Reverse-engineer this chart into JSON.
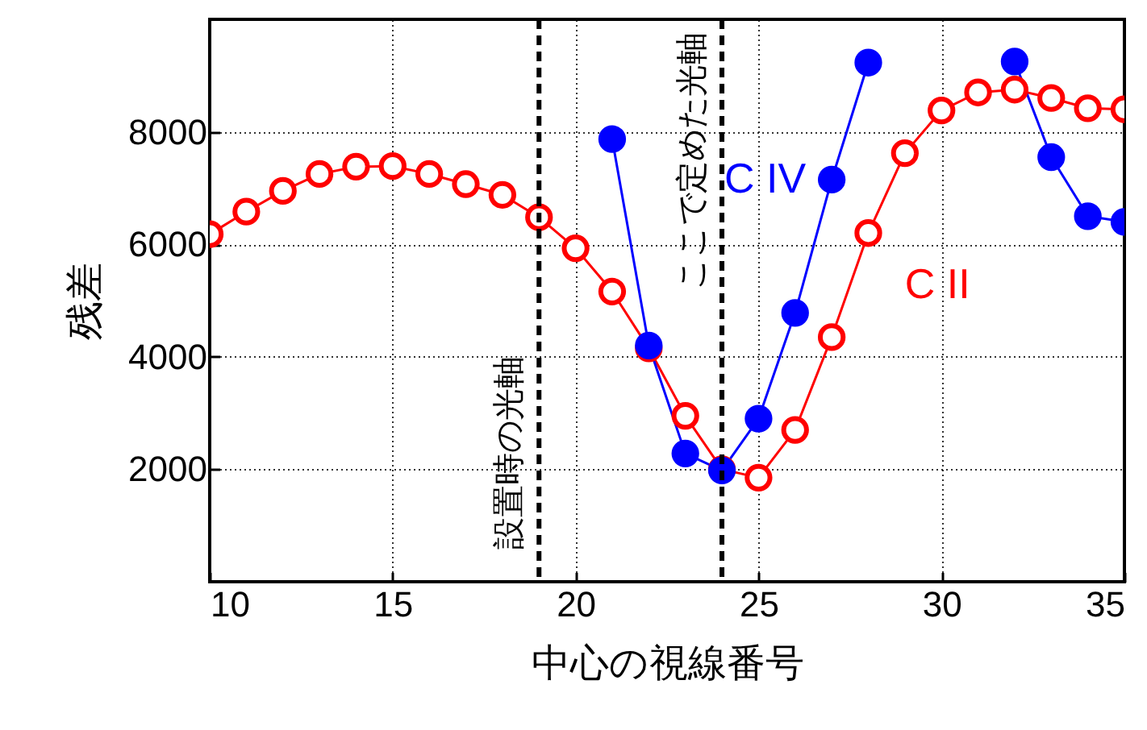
{
  "chart_data": {
    "type": "line",
    "xlabel": "中心の視線番号",
    "ylabel": "残差",
    "x": [
      10,
      11,
      12,
      13,
      14,
      15,
      16,
      17,
      18,
      19,
      20,
      21,
      22,
      23,
      24,
      25,
      26,
      27,
      28,
      29,
      30,
      31,
      32,
      33,
      34,
      35
    ],
    "series": [
      {
        "name": "C II",
        "color": "#ff0000",
        "values": [
          6180,
          6580,
          6950,
          7250,
          7380,
          7390,
          7250,
          7070,
          6880,
          6480,
          5930,
          5160,
          4150,
          2950,
          2000,
          1850,
          2700,
          4350,
          6200,
          7620,
          8380,
          8700,
          8750,
          8600,
          8420,
          8400
        ]
      },
      {
        "name": "C IV",
        "color": "#0000ff",
        "values": [
          null,
          null,
          null,
          null,
          null,
          null,
          null,
          null,
          null,
          null,
          null,
          7870,
          4200,
          2280,
          1980,
          2900,
          4780,
          7150,
          9230,
          null,
          null,
          null,
          9250,
          7550,
          6500,
          6400
        ]
      }
    ],
    "xlim": [
      10,
      35
    ],
    "xticks": [
      10,
      15,
      20,
      25,
      30,
      35
    ],
    "ylim": [
      0,
      10000
    ],
    "yticks": [
      {
        "value": 2000,
        "label": "2000"
      },
      {
        "value": 4000,
        "label": "4000"
      },
      {
        "value": 6000,
        "label": "6000"
      },
      {
        "value": 8000,
        "label": "8000"
      }
    ],
    "grid": true,
    "marker": "circle",
    "line_style": "solid",
    "ref_lines": [
      {
        "axis": "x",
        "value": 19,
        "label": "設置時の光軸",
        "color": "#000000",
        "line_style": "dashed"
      },
      {
        "axis": "x",
        "value": 24,
        "label": "ここで定めた光軸",
        "color": "#000000",
        "line_style": "dashed"
      }
    ]
  }
}
